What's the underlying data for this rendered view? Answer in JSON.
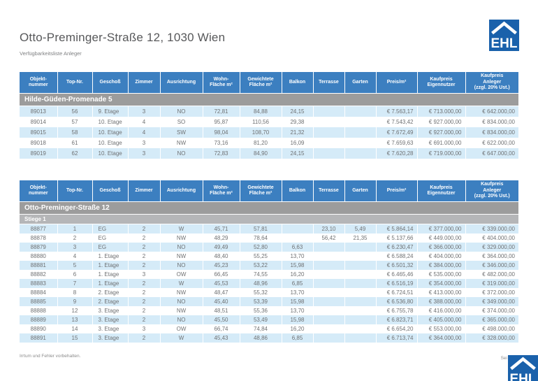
{
  "page": {
    "title": "Otto-Preminger-Straße 12, 1030 Wien",
    "subtitle": "Verfügbarkeitsliste Anleger",
    "footer_left": "Irrtum und Fehler vorbehalten.",
    "footer_right": "Sei",
    "logo_text": "EHL"
  },
  "colors": {
    "header_blue": "#3c7fc0",
    "row_alt_blue": "#d5ebf8",
    "section_gray": "#9c9c9c",
    "subsection_gray": "#b5b6b8",
    "logo_blue": "#1a61ab",
    "cell_text_gray": "#6f7173"
  },
  "columns": [
    "Objekt-\nnummer",
    "Top-Nr.",
    "Geschoß",
    "Zimmer",
    "Ausrichtung",
    "Wohn-\nFläche m²",
    "Gewichtete\nFläche m²",
    "Balkon",
    "Terrasse",
    "Garten",
    "Preis/m²",
    "Kaufpreis\nEigennutzer",
    "Kaufpreis\nAnleger\n(zzgl. 20% Ust.)"
  ],
  "tables": [
    {
      "section": "Hilde-Güden-Promenade 5",
      "subsection": null,
      "rows": [
        [
          "89013",
          "56",
          "9. Etage",
          "3",
          "NO",
          "72,81",
          "84,88",
          "24,15",
          "",
          "",
          "€ 7.563,17",
          "€ 713.000,00",
          "€ 642.000,00"
        ],
        [
          "89014",
          "57",
          "10. Etage",
          "4",
          "SO",
          "95,87",
          "110,56",
          "29,38",
          "",
          "",
          "€ 7.543,42",
          "€ 927.000,00",
          "€ 834.000,00"
        ],
        [
          "89015",
          "58",
          "10. Etage",
          "4",
          "SW",
          "98,04",
          "108,70",
          "21,32",
          "",
          "",
          "€ 7.672,49",
          "€ 927.000,00",
          "€ 834.000,00"
        ],
        [
          "89018",
          "61",
          "10. Etage",
          "3",
          "NW",
          "73,16",
          "81,20",
          "16,09",
          "",
          "",
          "€ 7.659,63",
          "€ 691.000,00",
          "€ 622.000,00"
        ],
        [
          "89019",
          "62",
          "10. Etage",
          "3",
          "NO",
          "72,83",
          "84,90",
          "24,15",
          "",
          "",
          "€ 7.620,28",
          "€ 719.000,00",
          "€ 647.000,00"
        ]
      ]
    },
    {
      "section": "Otto-Preminger-Straße 12",
      "subsection": "Stiege 1",
      "rows": [
        [
          "88877",
          "1",
          "EG",
          "2",
          "W",
          "45,71",
          "57,81",
          "",
          "23,10",
          "5,49",
          "€ 5.864,14",
          "€ 377.000,00",
          "€ 339.000,00"
        ],
        [
          "88878",
          "2",
          "EG",
          "2",
          "NW",
          "48,29",
          "78,64",
          "",
          "56,42",
          "21,35",
          "€ 5.137,66",
          "€ 449.000,00",
          "€ 404.000,00"
        ],
        [
          "88879",
          "3",
          "EG",
          "2",
          "NO",
          "49,49",
          "52,80",
          "6,63",
          "",
          "",
          "€ 6.230,47",
          "€ 366.000,00",
          "€ 329.000,00"
        ],
        [
          "88880",
          "4",
          "1. Etage",
          "2",
          "NW",
          "48,40",
          "55,25",
          "13,70",
          "",
          "",
          "€ 6.588,24",
          "€ 404.000,00",
          "€ 364.000,00"
        ],
        [
          "88881",
          "5",
          "1. Etage",
          "2",
          "NO",
          "45,23",
          "53,22",
          "15,98",
          "",
          "",
          "€ 6.501,32",
          "€ 384.000,00",
          "€ 346.000,00"
        ],
        [
          "88882",
          "6",
          "1. Etage",
          "3",
          "OW",
          "66,45",
          "74,55",
          "16,20",
          "",
          "",
          "€ 6.465,46",
          "€ 535.000,00",
          "€ 482.000,00"
        ],
        [
          "88883",
          "7",
          "1. Etage",
          "2",
          "W",
          "45,53",
          "48,96",
          "6,85",
          "",
          "",
          "€ 6.516,19",
          "€ 354.000,00",
          "€ 319.000,00"
        ],
        [
          "88884",
          "8",
          "2. Etage",
          "2",
          "NW",
          "48,47",
          "55,32",
          "13,70",
          "",
          "",
          "€ 6.724,51",
          "€ 413.000,00",
          "€ 372.000,00"
        ],
        [
          "88885",
          "9",
          "2. Etage",
          "2",
          "NO",
          "45,40",
          "53,39",
          "15,98",
          "",
          "",
          "€ 6.536,80",
          "€ 388.000,00",
          "€ 349.000,00"
        ],
        [
          "88888",
          "12",
          "3. Etage",
          "2",
          "NW",
          "48,51",
          "55,36",
          "13,70",
          "",
          "",
          "€ 6.755,78",
          "€ 416.000,00",
          "€ 374.000,00"
        ],
        [
          "88889",
          "13",
          "3. Etage",
          "2",
          "NO",
          "45,50",
          "53,49",
          "15,98",
          "",
          "",
          "€ 6.823,71",
          "€ 405.000,00",
          "€ 365.000,00"
        ],
        [
          "88890",
          "14",
          "3. Etage",
          "3",
          "OW",
          "66,74",
          "74,84",
          "16,20",
          "",
          "",
          "€ 6.654,20",
          "€ 553.000,00",
          "€ 498.000,00"
        ],
        [
          "88891",
          "15",
          "3. Etage",
          "2",
          "W",
          "45,43",
          "48,86",
          "6,85",
          "",
          "",
          "€ 6.713,74",
          "€ 364.000,00",
          "€ 328.000,00"
        ]
      ]
    }
  ]
}
